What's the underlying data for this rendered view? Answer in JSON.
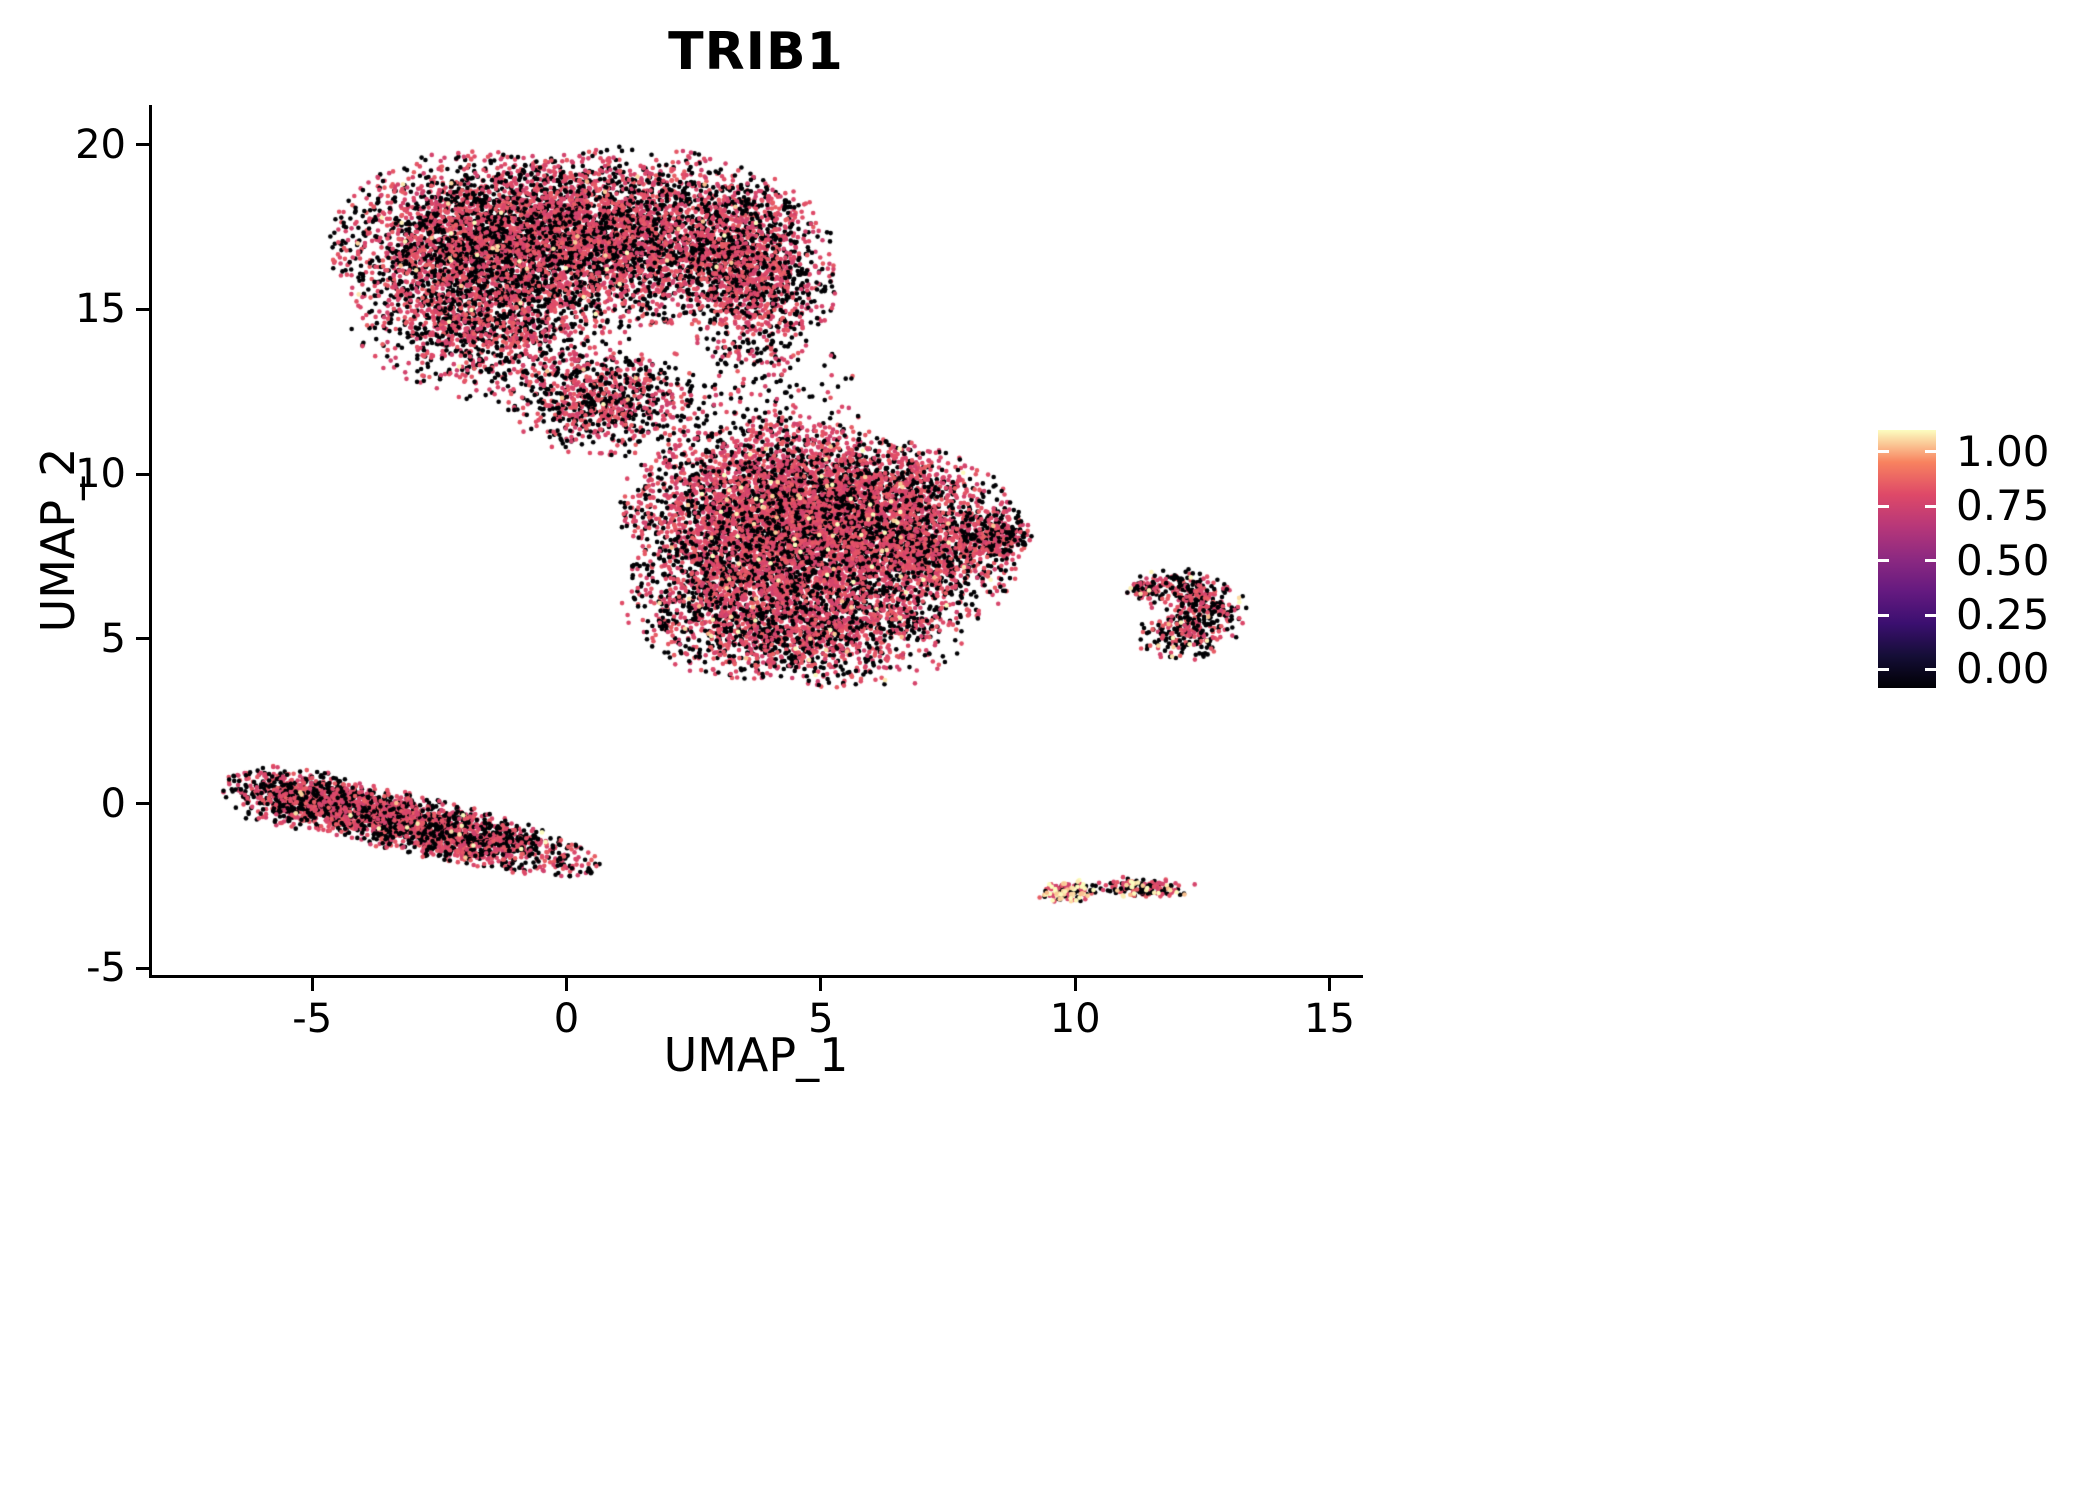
{
  "chart_data": {
    "type": "scatter",
    "title": "TRIB1",
    "xlabel": "UMAP_1",
    "ylabel": "UMAP_2",
    "xlim": [
      -8.15,
      15.6
    ],
    "ylim": [
      -5.2,
      21.2
    ],
    "grid": false,
    "xticks": [
      {
        "v": -5,
        "label": "-5"
      },
      {
        "v": 0,
        "label": "0"
      },
      {
        "v": 5,
        "label": "5"
      },
      {
        "v": 10,
        "label": "10"
      },
      {
        "v": 15,
        "label": "15"
      }
    ],
    "yticks": [
      {
        "v": -5,
        "label": "-5"
      },
      {
        "v": 0,
        "label": "0"
      },
      {
        "v": 5,
        "label": "5"
      },
      {
        "v": 10,
        "label": "10"
      },
      {
        "v": 15,
        "label": "15"
      },
      {
        "v": 20,
        "label": "20"
      }
    ],
    "colorbar": {
      "position": "right",
      "range": [
        -0.085,
        1.1
      ],
      "ticks": [
        {
          "v": 1.0,
          "label": "1.00"
        },
        {
          "v": 0.75,
          "label": "0.75"
        },
        {
          "v": 0.5,
          "label": "0.50"
        },
        {
          "v": 0.25,
          "label": "0.25"
        },
        {
          "v": 0.0,
          "label": "0.00"
        }
      ],
      "stops": [
        "#000004",
        "#150e37",
        "#3b0f70",
        "#651a80",
        "#8c2981",
        "#b73779",
        "#de4968",
        "#f8825f",
        "#fcfdbf"
      ]
    },
    "point_values": {
      "zero": 0,
      "mid": [
        0.7,
        0.8
      ],
      "high": [
        0.93,
        1.02
      ]
    },
    "point_radius_px": 2.3,
    "clusters": [
      {
        "name": "upper-blob-left-lobe",
        "cx": -1.7,
        "cy": 16.9,
        "sx": 1.35,
        "sy": 1.35,
        "rot": 0,
        "n": 3000,
        "clamp": 2.2,
        "p0": 0.46,
        "p1": 0.006,
        "seed": 11
      },
      {
        "name": "upper-blob-mid-lobe",
        "cx": 1.2,
        "cy": 17.2,
        "sx": 1.6,
        "sy": 1.25,
        "rot": 0,
        "n": 3200,
        "clamp": 2.2,
        "p0": 0.42,
        "p1": 0.006,
        "seed": 12
      },
      {
        "name": "upper-blob-right-lobe",
        "cx": 3.7,
        "cy": 16.1,
        "sx": 0.75,
        "sy": 1.35,
        "rot": 0,
        "n": 1300,
        "clamp": 2.2,
        "p0": 0.44,
        "p1": 0.004,
        "seed": 13
      },
      {
        "name": "upper-blob-lower-tail",
        "cx": -1.5,
        "cy": 14.3,
        "sx": 1.25,
        "sy": 0.95,
        "rot": -10,
        "n": 1000,
        "clamp": 2.2,
        "p0": 0.45,
        "p1": 0.004,
        "seed": 14
      },
      {
        "name": "neck-dense",
        "cx": 0.7,
        "cy": 12.2,
        "sx": 0.85,
        "sy": 0.75,
        "rot": 0,
        "n": 750,
        "clamp": 2.2,
        "p0": 0.46,
        "p1": 0.004,
        "seed": 15
      },
      {
        "name": "neck-sparse",
        "cx": 3.4,
        "cy": 11.9,
        "sx": 1.3,
        "sy": 1.15,
        "rot": 0,
        "n": 280,
        "clamp": 2.2,
        "p0": 0.52,
        "p1": 0.0,
        "seed": 16
      },
      {
        "name": "middle-blob-upper",
        "cx": 4.3,
        "cy": 9.0,
        "sx": 1.5,
        "sy": 1.2,
        "rot": 0,
        "n": 3800,
        "clamp": 2.2,
        "p0": 0.34,
        "p1": 0.01,
        "seed": 17
      },
      {
        "name": "middle-blob-right",
        "cx": 6.4,
        "cy": 7.9,
        "sx": 1.2,
        "sy": 1.4,
        "rot": 0,
        "n": 2800,
        "clamp": 2.2,
        "p0": 0.38,
        "p1": 0.01,
        "seed": 18
      },
      {
        "name": "middle-blob-left-lower",
        "cx": 3.5,
        "cy": 6.3,
        "sx": 1.1,
        "sy": 1.15,
        "rot": 0,
        "n": 1900,
        "clamp": 2.2,
        "p0": 0.4,
        "p1": 0.012,
        "seed": 19
      },
      {
        "name": "middle-blob-tip",
        "cx": 8.35,
        "cy": 8.2,
        "sx": 0.4,
        "sy": 0.33,
        "rot": 0,
        "n": 240,
        "clamp": 2.2,
        "p0": 0.45,
        "p1": 0.0,
        "seed": 20
      },
      {
        "name": "middle-blob-bottom",
        "cx": 5.3,
        "cy": 5.0,
        "sx": 1.15,
        "sy": 0.68,
        "rot": 0,
        "n": 700,
        "clamp": 2.2,
        "p0": 0.42,
        "p1": 0.012,
        "seed": 21
      },
      {
        "name": "strip-main",
        "cx": -3.0,
        "cy": -0.62,
        "sx": 1.75,
        "sy": 0.4,
        "rot": -20,
        "n": 2300,
        "clamp": 2.25,
        "p0": 0.46,
        "p1": 0.008,
        "seed": 22
      },
      {
        "name": "strip-left-end",
        "cx": -5.3,
        "cy": 0.15,
        "sx": 0.7,
        "sy": 0.45,
        "rot": -15,
        "n": 420,
        "clamp": 2.2,
        "p0": 0.46,
        "p1": 0.008,
        "seed": 23
      },
      {
        "name": "right-cluster-a",
        "cx": 12.0,
        "cy": 6.5,
        "sx": 0.45,
        "sy": 0.3,
        "rot": 0,
        "n": 160,
        "clamp": 2.2,
        "p0": 0.5,
        "p1": 0.02,
        "seed": 24
      },
      {
        "name": "right-cluster-b",
        "cx": 12.6,
        "cy": 5.85,
        "sx": 0.38,
        "sy": 0.5,
        "rot": 0,
        "n": 200,
        "clamp": 2.2,
        "p0": 0.5,
        "p1": 0.02,
        "seed": 25
      },
      {
        "name": "right-cluster-c",
        "cx": 12.1,
        "cy": 5.05,
        "sx": 0.45,
        "sy": 0.35,
        "rot": 0,
        "n": 170,
        "clamp": 2.2,
        "p0": 0.5,
        "p1": 0.03,
        "seed": 26
      },
      {
        "name": "right-cluster-spur",
        "cx": 11.3,
        "cy": 6.5,
        "sx": 0.18,
        "sy": 0.13,
        "rot": 0,
        "n": 40,
        "clamp": 2.0,
        "p0": 0.5,
        "p1": 0.05,
        "seed": 27
      },
      {
        "name": "tiny-bottom-left",
        "cx": 9.85,
        "cy": -2.65,
        "sx": 0.3,
        "sy": 0.17,
        "rot": 0,
        "n": 140,
        "clamp": 2.2,
        "p0": 0.3,
        "p1": 0.28,
        "seed": 28
      },
      {
        "name": "tiny-bottom-right",
        "cx": 11.35,
        "cy": -2.55,
        "sx": 0.42,
        "sy": 0.15,
        "rot": -5,
        "n": 150,
        "clamp": 2.2,
        "p0": 0.35,
        "p1": 0.14,
        "seed": 29
      }
    ],
    "extra_points": [
      [
        6.85,
        3.65,
        0.72
      ],
      [
        9.0,
        8.2,
        0
      ],
      [
        10.55,
        -2.62,
        0.72
      ],
      [
        10.9,
        -2.58,
        0
      ],
      [
        12.35,
        -2.45,
        0.72
      ],
      [
        1.15,
        10.9,
        0
      ],
      [
        2.1,
        10.55,
        0.72
      ],
      [
        5.6,
        12.9,
        0
      ],
      [
        5.2,
        13.6,
        0.72
      ]
    ]
  }
}
